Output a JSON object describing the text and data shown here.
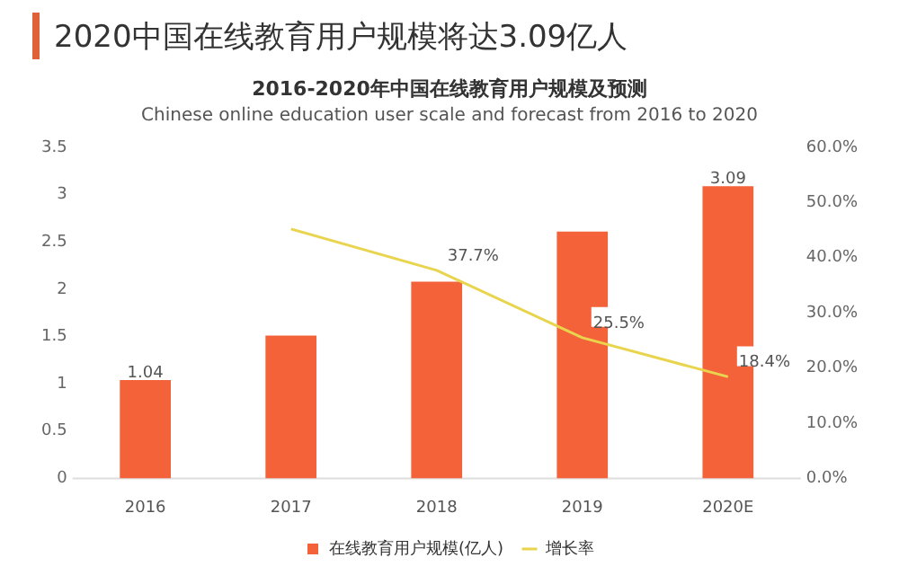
{
  "chart_data": {
    "type": "bar",
    "title": "2020中国在线教育用户规模将达3.09亿人",
    "subtitle": "2016-2020年中国在线教育用户规模及预测",
    "annotations": [
      "Chinese online education user scale and forecast from 2016 to 2020"
    ],
    "categories": [
      "2016",
      "2017",
      "2018",
      "2019",
      "2020E"
    ],
    "series": [
      {
        "name": "在线教育用户规模(亿人)",
        "color": "#f4623a",
        "values": [
          1.04,
          1.51,
          2.08,
          2.61,
          3.09
        ],
        "value_labels": [
          "1.04",
          null,
          null,
          null,
          "3.09"
        ]
      },
      {
        "name": "增长率",
        "type": "line",
        "axis": "y2",
        "color": "#e8d44d",
        "values": [
          null,
          45.2,
          37.7,
          25.5,
          18.4
        ],
        "value_labels": [
          null,
          null,
          "37.7%",
          "25.5%",
          "18.4%"
        ]
      }
    ],
    "ylim": [
      0,
      3.5
    ],
    "yticks": [
      0,
      0.5,
      1,
      1.5,
      2,
      2.5,
      3,
      3.5
    ],
    "y2lim": [
      0,
      60
    ],
    "y2ticks": [
      {
        "value": 0,
        "label": "0.0%"
      },
      {
        "value": 10,
        "label": "10.0%"
      },
      {
        "value": 20,
        "label": "20.0%"
      },
      {
        "value": 30,
        "label": "30.0%"
      },
      {
        "value": 40,
        "label": "40.0%"
      },
      {
        "value": 50,
        "label": "50.0%"
      },
      {
        "value": 60,
        "label": "60.0%"
      }
    ],
    "grid": false,
    "legend": "bottom",
    "marker": "none",
    "line_style": "solid"
  }
}
